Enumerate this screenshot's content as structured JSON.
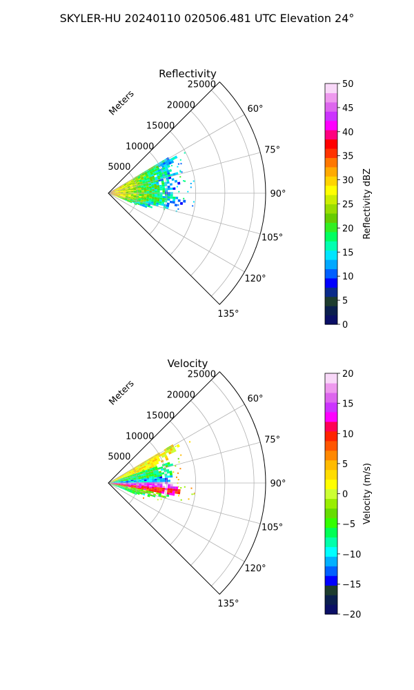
{
  "suptitle": "SKYLER-HU  20240110  020506.481 UTC Elevation 24°",
  "chart_data": [
    {
      "type": "heatmap",
      "title": "Reflectivity",
      "projection": "polar sector",
      "theta_range_deg": [
        45,
        135
      ],
      "theta_ticks": [
        "60°",
        "75°",
        "90°",
        "105°",
        "120°",
        "135°"
      ],
      "radial_label": "Meters",
      "radial_ticks": [
        "5000",
        "10000",
        "15000",
        "20000",
        "25000"
      ],
      "rlim": [
        0,
        27000
      ],
      "grid": true,
      "colorbar": {
        "label": "Reflectivity dBZ",
        "range": [
          0,
          50
        ],
        "ticks": [
          "0",
          "5",
          "10",
          "15",
          "20",
          "25",
          "30",
          "35",
          "40",
          "45",
          "50"
        ]
      },
      "field": {
        "echo_extent_m": 13500,
        "near_range_values_dbz": [
          24,
          33
        ],
        "far_range_values_dbz": [
          12,
          20
        ],
        "beams": [
          {
            "az": 60,
            "r_max": 13000
          },
          {
            "az": 62,
            "r_max": 13500
          },
          {
            "az": 64,
            "r_max": 12800
          },
          {
            "az": 66,
            "r_max": 11800
          },
          {
            "az": 68,
            "r_max": 11500
          },
          {
            "az": 70,
            "r_max": 11600
          },
          {
            "az": 72,
            "r_max": 12000
          },
          {
            "az": 74,
            "r_max": 12400
          },
          {
            "az": 76,
            "r_max": 11000
          },
          {
            "az": 78,
            "r_max": 11200
          },
          {
            "az": 80,
            "r_max": 11800
          },
          {
            "az": 82,
            "r_max": 12300
          },
          {
            "az": 84,
            "r_max": 11500
          },
          {
            "az": 86,
            "r_max": 12000
          },
          {
            "az": 88,
            "r_max": 11300
          },
          {
            "az": 90,
            "r_max": 11000
          },
          {
            "az": 92,
            "r_max": 11600
          },
          {
            "az": 94,
            "r_max": 12500
          },
          {
            "az": 96,
            "r_max": 13300
          },
          {
            "az": 98,
            "r_max": 12800
          },
          {
            "az": 100,
            "r_max": 12000
          },
          {
            "az": 102,
            "r_max": 11000
          },
          {
            "az": 104,
            "r_max": 10300
          },
          {
            "az": 106,
            "r_max": 9000
          },
          {
            "az": 108,
            "r_max": 7800
          },
          {
            "az": 110,
            "r_max": 6800
          },
          {
            "az": 112,
            "r_max": 5400
          }
        ]
      }
    },
    {
      "type": "heatmap",
      "title": "Velocity",
      "projection": "polar sector",
      "theta_range_deg": [
        45,
        135
      ],
      "theta_ticks": [
        "60°",
        "75°",
        "90°",
        "105°",
        "120°",
        "135°"
      ],
      "radial_label": "Meters",
      "radial_ticks": [
        "5000",
        "10000",
        "15000",
        "20000",
        "25000"
      ],
      "rlim": [
        0,
        27000
      ],
      "grid": true,
      "colorbar": {
        "label": "Velocity (m/s)",
        "range": [
          -20,
          20
        ],
        "ticks": [
          "−20",
          "−15",
          "−10",
          "−5",
          "0",
          "5",
          "10",
          "15",
          "20"
        ]
      },
      "field": {
        "echo_extent_m": 13500,
        "sectors": [
          {
            "az_from": 58,
            "az_to": 72,
            "value": 2
          },
          {
            "az_from": 72,
            "az_to": 84,
            "value": -6
          },
          {
            "az_from": 84,
            "az_to": 90,
            "value": -11
          },
          {
            "az_from": 90,
            "az_to": 96,
            "value": 15
          },
          {
            "az_from": 96,
            "az_to": 102,
            "value": 10
          },
          {
            "az_from": 102,
            "az_to": 108,
            "value": -3
          },
          {
            "az_from": 108,
            "az_to": 113,
            "value": -7
          }
        ],
        "beams": [
          {
            "az": 60,
            "r_max": 12500
          },
          {
            "az": 62,
            "r_max": 13500
          },
          {
            "az": 64,
            "r_max": 12500
          },
          {
            "az": 66,
            "r_max": 11500
          },
          {
            "az": 68,
            "r_max": 11000
          },
          {
            "az": 70,
            "r_max": 11000
          },
          {
            "az": 72,
            "r_max": 11300
          },
          {
            "az": 74,
            "r_max": 11800
          },
          {
            "az": 76,
            "r_max": 10600
          },
          {
            "az": 78,
            "r_max": 10600
          },
          {
            "az": 80,
            "r_max": 11000
          },
          {
            "az": 82,
            "r_max": 11500
          },
          {
            "az": 84,
            "r_max": 10800
          },
          {
            "az": 86,
            "r_max": 11300
          },
          {
            "az": 88,
            "r_max": 10500
          },
          {
            "az": 90,
            "r_max": 10200
          },
          {
            "az": 92,
            "r_max": 11000
          },
          {
            "az": 94,
            "r_max": 12000
          },
          {
            "az": 96,
            "r_max": 12700
          },
          {
            "az": 98,
            "r_max": 12300
          },
          {
            "az": 100,
            "r_max": 11500
          },
          {
            "az": 102,
            "r_max": 10500
          },
          {
            "az": 104,
            "r_max": 9800
          },
          {
            "az": 106,
            "r_max": 8600
          },
          {
            "az": 108,
            "r_max": 7500
          },
          {
            "az": 110,
            "r_max": 6500
          },
          {
            "az": 112,
            "r_max": 5200
          }
        ]
      }
    }
  ],
  "palettes": {
    "reflectivity": [
      "#0a0f66",
      "#0b1f4d",
      "#1d3c2e",
      "#0a2b8a",
      "#0000ff",
      "#0060ff",
      "#00a8ff",
      "#00e5ff",
      "#00ffb0",
      "#00ff60",
      "#33ee22",
      "#66cc00",
      "#99dd00",
      "#ccee00",
      "#ffff00",
      "#ffd400",
      "#ffaa00",
      "#ff7700",
      "#ff3300",
      "#ff0000",
      "#ff0080",
      "#ff00ff",
      "#cc33ff",
      "#dd66ee",
      "#ee99ee",
      "#f8d8f8"
    ],
    "velocity": [
      "#0a0f66",
      "#0b1f4d",
      "#1d3c2e",
      "#0000ff",
      "#0060ff",
      "#00b0ff",
      "#00ffff",
      "#00ffaa",
      "#00ff55",
      "#33ff00",
      "#66dd00",
      "#99ee00",
      "#ccff33",
      "#ffff00",
      "#ffdd00",
      "#ffbb00",
      "#ff8800",
      "#ff5500",
      "#ff2200",
      "#ff0055",
      "#ff00ff",
      "#cc33ff",
      "#dd66ee",
      "#ee99ee",
      "#f8d8f8"
    ]
  }
}
